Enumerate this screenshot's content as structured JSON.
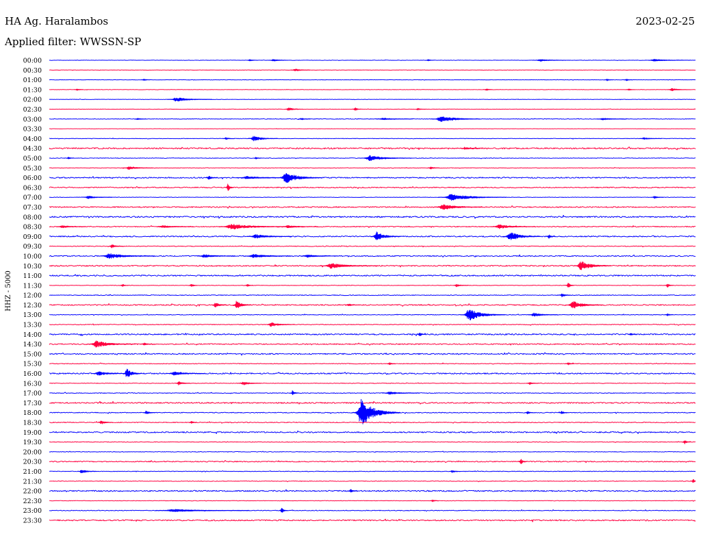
{
  "chart_data": {
    "type": "line",
    "title": "HA Ag. Haralambos",
    "subtitle": "Applied filter: WWSSN-SP",
    "date": "2023-02-25",
    "ylabel": "HHZ - 5000",
    "xlim": [
      0,
      30
    ],
    "colors": {
      "blue": "#0000ff",
      "red": "#ff0040"
    },
    "rows": [
      {
        "time": "00:00",
        "color": "blue",
        "noise": 0.3,
        "events": [
          {
            "t": 9.3,
            "dur": 0.3,
            "amp": 1.5
          },
          {
            "t": 10.4,
            "dur": 0.6,
            "amp": 1.5
          },
          {
            "t": 17.6,
            "dur": 0.2,
            "amp": 1.5
          },
          {
            "t": 22.8,
            "dur": 1.0,
            "amp": 1.5
          },
          {
            "t": 28.1,
            "dur": 1.2,
            "amp": 1.5
          }
        ]
      },
      {
        "time": "00:30",
        "color": "red",
        "noise": 0.3,
        "events": [
          {
            "t": 11.4,
            "dur": 0.5,
            "amp": 2
          }
        ]
      },
      {
        "time": "01:00",
        "color": "blue",
        "noise": 0.3,
        "events": [
          {
            "t": 4.4,
            "dur": 0.2,
            "amp": 1.5
          },
          {
            "t": 25.9,
            "dur": 0.2,
            "amp": 1.5
          },
          {
            "t": 26.8,
            "dur": 0.2,
            "amp": 1.5
          }
        ]
      },
      {
        "time": "01:30",
        "color": "red",
        "noise": 0.3,
        "events": [
          {
            "t": 1.3,
            "dur": 0.2,
            "amp": 1.5
          },
          {
            "t": 20.3,
            "dur": 0.2,
            "amp": 1.5
          },
          {
            "t": 26.9,
            "dur": 0.2,
            "amp": 1.5
          },
          {
            "t": 28.9,
            "dur": 0.6,
            "amp": 2
          }
        ]
      },
      {
        "time": "02:00",
        "color": "blue",
        "noise": 0.3,
        "events": [
          {
            "t": 5.9,
            "dur": 1.2,
            "amp": 3
          }
        ]
      },
      {
        "time": "02:30",
        "color": "red",
        "noise": 0.3,
        "events": [
          {
            "t": 11.1,
            "dur": 0.5,
            "amp": 3
          },
          {
            "t": 14.2,
            "dur": 0.2,
            "amp": 3
          },
          {
            "t": 17.1,
            "dur": 0.3,
            "amp": 1.5
          }
        ]
      },
      {
        "time": "03:00",
        "color": "blue",
        "noise": 0.5,
        "events": [
          {
            "t": 4.1,
            "dur": 0.3,
            "amp": 1.5
          },
          {
            "t": 11.7,
            "dur": 0.3,
            "amp": 1.5
          },
          {
            "t": 15.5,
            "dur": 1.0,
            "amp": 1.5
          },
          {
            "t": 18.2,
            "dur": 1.3,
            "amp": 5
          },
          {
            "t": 25.7,
            "dur": 0.8,
            "amp": 1.5
          }
        ]
      },
      {
        "time": "03:30",
        "color": "red",
        "noise": 0.2,
        "events": []
      },
      {
        "time": "04:00",
        "color": "blue",
        "noise": 0.4,
        "events": [
          {
            "t": 8.2,
            "dur": 0.3,
            "amp": 1.5
          },
          {
            "t": 9.5,
            "dur": 0.8,
            "amp": 4
          },
          {
            "t": 27.6,
            "dur": 0.6,
            "amp": 1.5
          }
        ]
      },
      {
        "time": "04:30",
        "color": "red",
        "noise": 1.2,
        "events": [
          {
            "t": 19.3,
            "dur": 0.5,
            "amp": 2
          }
        ]
      },
      {
        "time": "05:00",
        "color": "blue",
        "noise": 0.5,
        "events": [
          {
            "t": 0.9,
            "dur": 0.2,
            "amp": 1.5
          },
          {
            "t": 9.6,
            "dur": 0.2,
            "amp": 1.5
          },
          {
            "t": 14.9,
            "dur": 1.4,
            "amp": 4
          }
        ]
      },
      {
        "time": "05:30",
        "color": "red",
        "noise": 0.4,
        "events": [
          {
            "t": 3.7,
            "dur": 0.8,
            "amp": 2.5
          },
          {
            "t": 17.7,
            "dur": 0.3,
            "amp": 2
          }
        ]
      },
      {
        "time": "06:00",
        "color": "blue",
        "noise": 1.0,
        "events": [
          {
            "t": 7.4,
            "dur": 0.3,
            "amp": 3
          },
          {
            "t": 9.2,
            "dur": 1.5,
            "amp": 2
          },
          {
            "t": 11.0,
            "dur": 1.2,
            "amp": 8
          }
        ]
      },
      {
        "time": "06:30",
        "color": "red",
        "noise": 0.9,
        "events": [
          {
            "t": 8.3,
            "dur": 0.2,
            "amp": 6
          }
        ]
      },
      {
        "time": "07:00",
        "color": "blue",
        "noise": 0.4,
        "events": [
          {
            "t": 1.8,
            "dur": 0.8,
            "amp": 2
          },
          {
            "t": 18.7,
            "dur": 1.8,
            "amp": 5
          },
          {
            "t": 28.1,
            "dur": 0.3,
            "amp": 2
          }
        ]
      },
      {
        "time": "07:30",
        "color": "red",
        "noise": 1.0,
        "events": [
          {
            "t": 18.3,
            "dur": 1.3,
            "amp": 4
          }
        ]
      },
      {
        "time": "08:00",
        "color": "blue",
        "noise": 1.2,
        "events": []
      },
      {
        "time": "08:30",
        "color": "red",
        "noise": 0.8,
        "events": [
          {
            "t": 0.6,
            "dur": 0.8,
            "amp": 2
          },
          {
            "t": 5.3,
            "dur": 1.0,
            "amp": 2
          },
          {
            "t": 8.5,
            "dur": 2.0,
            "amp": 4
          },
          {
            "t": 11.1,
            "dur": 1.0,
            "amp": 2
          },
          {
            "t": 20.9,
            "dur": 1.2,
            "amp": 3
          }
        ]
      },
      {
        "time": "09:00",
        "color": "blue",
        "noise": 1.0,
        "events": [
          {
            "t": 9.6,
            "dur": 1.2,
            "amp": 3
          },
          {
            "t": 15.2,
            "dur": 0.8,
            "amp": 7
          },
          {
            "t": 21.4,
            "dur": 1.0,
            "amp": 7
          },
          {
            "t": 23.2,
            "dur": 0.2,
            "amp": 3
          }
        ]
      },
      {
        "time": "09:30",
        "color": "red",
        "noise": 0.6,
        "events": [
          {
            "t": 2.9,
            "dur": 0.4,
            "amp": 3
          }
        ]
      },
      {
        "time": "10:00",
        "color": "blue",
        "noise": 0.9,
        "events": [
          {
            "t": 2.8,
            "dur": 1.5,
            "amp": 4
          },
          {
            "t": 7.2,
            "dur": 1.0,
            "amp": 2.5
          },
          {
            "t": 9.5,
            "dur": 1.2,
            "amp": 3
          },
          {
            "t": 12.0,
            "dur": 1.0,
            "amp": 2
          }
        ]
      },
      {
        "time": "10:30",
        "color": "red",
        "noise": 1.0,
        "events": [
          {
            "t": 13.1,
            "dur": 1.5,
            "amp": 4
          },
          {
            "t": 24.7,
            "dur": 1.0,
            "amp": 7
          }
        ]
      },
      {
        "time": "11:00",
        "color": "blue",
        "noise": 1.1,
        "events": []
      },
      {
        "time": "11:30",
        "color": "red",
        "noise": 0.4,
        "events": [
          {
            "t": 3.4,
            "dur": 0.2,
            "amp": 2
          },
          {
            "t": 6.6,
            "dur": 0.2,
            "amp": 3
          },
          {
            "t": 9.2,
            "dur": 0.2,
            "amp": 2
          },
          {
            "t": 18.9,
            "dur": 0.4,
            "amp": 2
          },
          {
            "t": 24.1,
            "dur": 0.2,
            "amp": 4
          },
          {
            "t": 28.7,
            "dur": 0.2,
            "amp": 3
          }
        ]
      },
      {
        "time": "12:00",
        "color": "blue",
        "noise": 0.6,
        "events": [
          {
            "t": 23.8,
            "dur": 0.3,
            "amp": 3
          }
        ]
      },
      {
        "time": "12:30",
        "color": "red",
        "noise": 1.0,
        "events": [
          {
            "t": 7.7,
            "dur": 0.4,
            "amp": 4
          },
          {
            "t": 8.7,
            "dur": 0.5,
            "amp": 7
          },
          {
            "t": 13.9,
            "dur": 0.3,
            "amp": 2
          },
          {
            "t": 24.3,
            "dur": 1.0,
            "amp": 6
          }
        ]
      },
      {
        "time": "13:00",
        "color": "blue",
        "noise": 0.5,
        "events": [
          {
            "t": 19.5,
            "dur": 1.2,
            "amp": 9
          },
          {
            "t": 22.5,
            "dur": 0.8,
            "amp": 3
          },
          {
            "t": 28.7,
            "dur": 0.2,
            "amp": 2
          }
        ]
      },
      {
        "time": "13:30",
        "color": "red",
        "noise": 0.6,
        "events": [
          {
            "t": 10.3,
            "dur": 0.8,
            "amp": 3
          }
        ]
      },
      {
        "time": "14:00",
        "color": "blue",
        "noise": 1.1,
        "events": [
          {
            "t": 17.2,
            "dur": 0.2,
            "amp": 3
          },
          {
            "t": 27.0,
            "dur": 0.2,
            "amp": 2
          }
        ]
      },
      {
        "time": "14:30",
        "color": "red",
        "noise": 1.0,
        "events": [
          {
            "t": 2.2,
            "dur": 1.3,
            "amp": 5
          },
          {
            "t": 4.4,
            "dur": 0.3,
            "amp": 2
          }
        ]
      },
      {
        "time": "15:00",
        "color": "blue",
        "noise": 1.0,
        "events": []
      },
      {
        "time": "15:30",
        "color": "red",
        "noise": 0.6,
        "events": [
          {
            "t": 15.8,
            "dur": 0.2,
            "amp": 2
          },
          {
            "t": 24.1,
            "dur": 0.2,
            "amp": 2
          }
        ]
      },
      {
        "time": "16:00",
        "color": "blue",
        "noise": 1.1,
        "events": [
          {
            "t": 2.3,
            "dur": 1.0,
            "amp": 3
          },
          {
            "t": 3.6,
            "dur": 0.5,
            "amp": 8
          },
          {
            "t": 5.8,
            "dur": 1.0,
            "amp": 2.5
          }
        ]
      },
      {
        "time": "16:30",
        "color": "red",
        "noise": 0.5,
        "events": [
          {
            "t": 6.0,
            "dur": 0.4,
            "amp": 3
          },
          {
            "t": 9.0,
            "dur": 0.6,
            "amp": 3
          },
          {
            "t": 22.3,
            "dur": 0.3,
            "amp": 2
          }
        ]
      },
      {
        "time": "17:00",
        "color": "blue",
        "noise": 0.6,
        "events": [
          {
            "t": 11.3,
            "dur": 0.2,
            "amp": 4
          },
          {
            "t": 15.8,
            "dur": 1.0,
            "amp": 2
          }
        ]
      },
      {
        "time": "17:30",
        "color": "red",
        "noise": 1.1,
        "events": []
      },
      {
        "time": "18:00",
        "color": "blue",
        "noise": 0.7,
        "events": [
          {
            "t": 4.5,
            "dur": 0.3,
            "amp": 3
          },
          {
            "t": 14.5,
            "dur": 1.3,
            "amp": 20
          },
          {
            "t": 22.2,
            "dur": 0.2,
            "amp": 2.5
          },
          {
            "t": 23.8,
            "dur": 0.2,
            "amp": 2.5
          }
        ]
      },
      {
        "time": "18:30",
        "color": "red",
        "noise": 0.7,
        "events": [
          {
            "t": 2.4,
            "dur": 0.4,
            "amp": 3
          },
          {
            "t": 6.6,
            "dur": 0.2,
            "amp": 2
          }
        ]
      },
      {
        "time": "19:00",
        "color": "blue",
        "noise": 1.1,
        "events": []
      },
      {
        "time": "19:30",
        "color": "red",
        "noise": 0.5,
        "events": [
          {
            "t": 29.5,
            "dur": 0.2,
            "amp": 3
          }
        ]
      },
      {
        "time": "20:00",
        "color": "blue",
        "noise": 0.5,
        "events": []
      },
      {
        "time": "20:30",
        "color": "red",
        "noise": 0.9,
        "events": [
          {
            "t": 21.9,
            "dur": 0.2,
            "amp": 4
          }
        ]
      },
      {
        "time": "21:00",
        "color": "blue",
        "noise": 0.5,
        "events": [
          {
            "t": 1.5,
            "dur": 0.5,
            "amp": 3
          },
          {
            "t": 18.7,
            "dur": 0.3,
            "amp": 2
          }
        ]
      },
      {
        "time": "21:30",
        "color": "red",
        "noise": 0.5,
        "events": [
          {
            "t": 29.9,
            "dur": 0.1,
            "amp": 3
          }
        ]
      },
      {
        "time": "22:00",
        "color": "blue",
        "noise": 1.1,
        "events": [
          {
            "t": 14.0,
            "dur": 0.2,
            "amp": 3
          }
        ]
      },
      {
        "time": "22:30",
        "color": "red",
        "noise": 0.4,
        "events": [
          {
            "t": 17.8,
            "dur": 0.2,
            "amp": 2
          }
        ]
      },
      {
        "time": "23:00",
        "color": "blue",
        "noise": 0.6,
        "events": [
          {
            "t": 5.8,
            "dur": 2.5,
            "amp": 2
          },
          {
            "t": 10.8,
            "dur": 0.2,
            "amp": 4
          }
        ]
      },
      {
        "time": "23:30",
        "color": "red",
        "noise": 1.1,
        "events": []
      }
    ]
  }
}
